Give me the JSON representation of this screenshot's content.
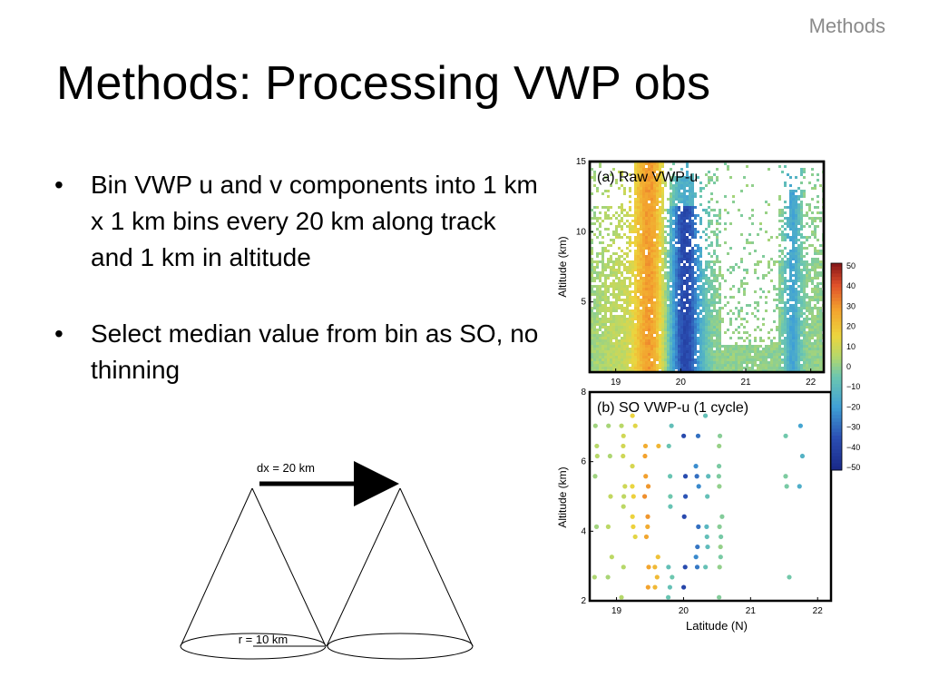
{
  "header": {
    "section": "Methods"
  },
  "slide": {
    "title": "Methods: Processing VWP obs"
  },
  "bullets": [
    "Bin VWP u and v components into 1 km x 1 km bins every 20 km along track and 1 km in altitude",
    "Select median value from bin as SO, no thinning"
  ],
  "diagram": {
    "dx_label": "dx = 20 km",
    "r_label": "r = 10 km"
  },
  "chart_data": [
    {
      "type": "heatmap",
      "title": "(a) Raw VWP-u",
      "ylabel": "Altitude (km)",
      "xlabel": "",
      "x_ticks": [
        "19",
        "20",
        "21",
        "22"
      ],
      "y_ticks": [
        "5",
        "10",
        "15"
      ],
      "xlim": [
        18.6,
        22.2
      ],
      "ylim": [
        0,
        15
      ],
      "grid": false
    },
    {
      "type": "scatter",
      "title": "(b) SO VWP-u (1 cycle)",
      "ylabel": "Altitude (km)",
      "xlabel": "Latitude (N)",
      "x_ticks": [
        "19",
        "20",
        "21",
        "22"
      ],
      "y_ticks": [
        "2",
        "4",
        "6",
        "8"
      ],
      "xlim": [
        18.6,
        22.2
      ],
      "ylim": [
        2,
        8
      ],
      "grid": false
    }
  ],
  "colorbar": {
    "labels": [
      "50",
      "40",
      "30",
      "20",
      "10",
      "0",
      "−10",
      "−20",
      "−30",
      "−40",
      "−50"
    ]
  },
  "colors": {
    "section_label": "#8a8a8a"
  }
}
